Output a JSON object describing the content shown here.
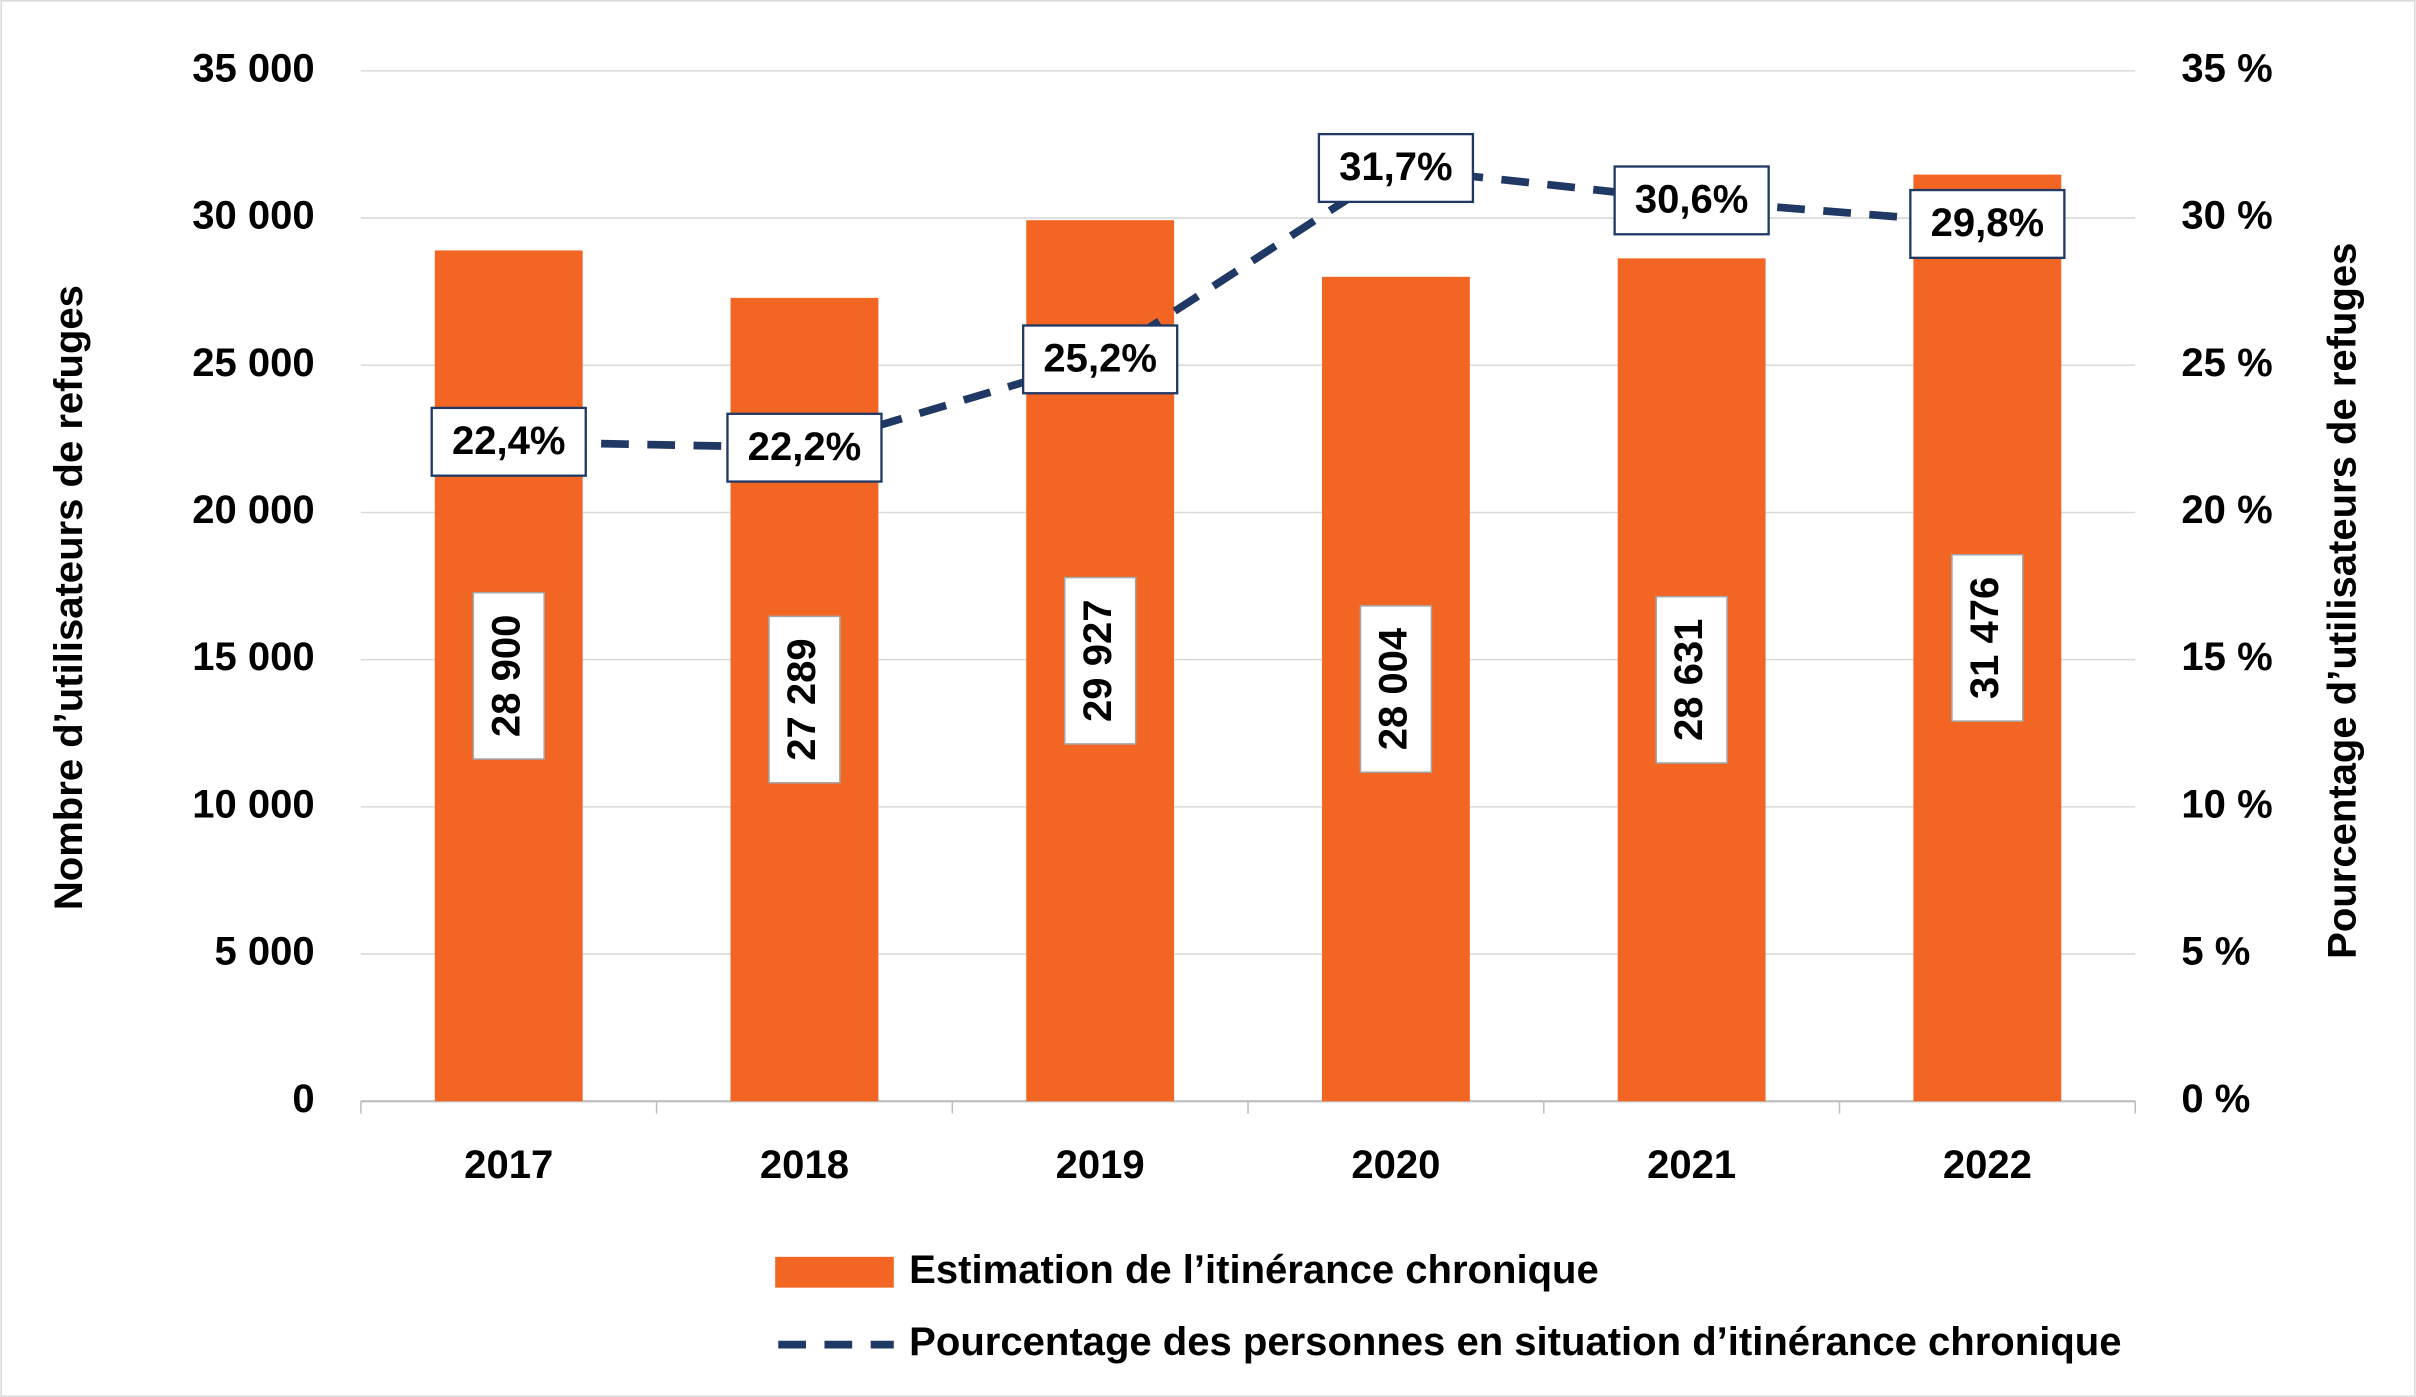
{
  "chart_data": {
    "type": "bar",
    "categories": [
      "2017",
      "2018",
      "2019",
      "2020",
      "2021",
      "2022"
    ],
    "series": [
      {
        "name": "Estimation de l’itinérance chronique",
        "color": "#f26522",
        "values": [
          28900,
          27289,
          29927,
          28004,
          28631,
          31476
        ],
        "value_labels": [
          "28 900",
          "27 289",
          "29 927",
          "28 004",
          "28 631",
          "31 476"
        ]
      },
      {
        "name": "Pourcentage des personnes en situation d’itinérance chronique",
        "type": "line",
        "axis": "y2",
        "color": "#1f3864",
        "values": [
          22.4,
          22.2,
          25.2,
          31.7,
          30.6,
          29.8
        ],
        "value_labels": [
          "22,4%",
          "22,2%",
          "25,2%",
          "31,7%",
          "30,6%",
          "29,8%"
        ]
      }
    ],
    "ylabel": "Nombre d’utilisateurs de refuges",
    "y2label": "Pourcentage d’utilisateurs de refuges",
    "ylim": [
      0,
      35000
    ],
    "yticks": [
      0,
      {
        "value": 5000,
        "label": "5 000"
      },
      {
        "value": 10000,
        "label": "10 000"
      },
      {
        "value": 15000,
        "label": "15 000"
      },
      {
        "value": 20000,
        "label": "20 000"
      },
      {
        "value": 25000,
        "label": "25 000"
      },
      {
        "value": 30000,
        "label": "30 000"
      },
      {
        "value": 35000,
        "label": "35 000"
      }
    ],
    "y2lim": [
      0,
      35
    ],
    "y2ticks": [
      {
        "value": 0,
        "label": "0 %"
      },
      {
        "value": 5,
        "label": "5 %"
      },
      {
        "value": 10,
        "label": "10 %"
      },
      {
        "value": 15,
        "label": "15 %"
      },
      {
        "value": 20,
        "label": "20 %"
      },
      {
        "value": 25,
        "label": "25 %"
      },
      {
        "value": 30,
        "label": "30 %"
      },
      {
        "value": 35,
        "label": "35 %"
      }
    ],
    "grid": true,
    "legend": "bottom"
  }
}
